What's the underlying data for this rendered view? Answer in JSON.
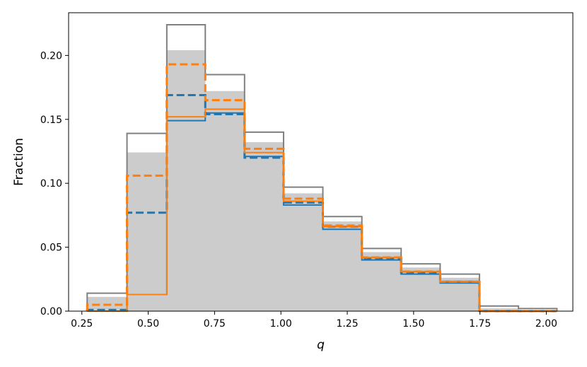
{
  "chart_data": {
    "type": "histogram",
    "title": "",
    "xlabel": "q",
    "ylabel": "Fraction",
    "xlim": [
      0.2,
      2.1
    ],
    "ylim": [
      0,
      0.2334
    ],
    "xticks": [
      0.25,
      0.5,
      0.75,
      1.0,
      1.25,
      1.5,
      1.75,
      2.0
    ],
    "xtick_labels": [
      "0.25",
      "0.50",
      "0.75",
      "1.00",
      "1.25",
      "1.50",
      "1.75",
      "2.00"
    ],
    "yticks": [
      0.0,
      0.05,
      0.1,
      0.15,
      0.2
    ],
    "ytick_labels": [
      "0.00",
      "0.05",
      "0.10",
      "0.15",
      "0.20"
    ],
    "grid": false,
    "bin_edges": [
      0.27,
      0.42,
      0.57,
      0.715,
      0.863,
      1.01,
      1.158,
      1.305,
      1.453,
      1.6,
      1.748,
      1.895,
      2.04
    ],
    "series": [
      {
        "style": "filled",
        "color": "#cccccc",
        "values": [
          0.011,
          0.124,
          0.204,
          0.172,
          0.132,
          0.092,
          0.07,
          0.046,
          0.034,
          0.026,
          0.002,
          0.0
        ]
      },
      {
        "style": "step",
        "color": "#808080",
        "dashed": false,
        "values": [
          0.014,
          0.139,
          0.224,
          0.185,
          0.14,
          0.097,
          0.074,
          0.049,
          0.037,
          0.029,
          0.004,
          0.002
        ]
      },
      {
        "style": "step",
        "color": "#1f77b4",
        "dashed": false,
        "values": [
          0.0,
          0.013,
          0.149,
          0.155,
          0.121,
          0.083,
          0.064,
          0.04,
          0.029,
          0.022,
          0.0,
          0.0
        ]
      },
      {
        "style": "step",
        "color": "#1f77b4",
        "dashed": true,
        "values": [
          0.001,
          0.077,
          0.169,
          0.154,
          0.12,
          0.085,
          0.066,
          0.041,
          0.03,
          0.023,
          0.0,
          0.0
        ]
      },
      {
        "style": "step",
        "color": "#ff7f0e",
        "dashed": false,
        "values": [
          0.0,
          0.013,
          0.152,
          0.158,
          0.124,
          0.086,
          0.066,
          0.042,
          0.031,
          0.023,
          0.0,
          0.0
        ]
      },
      {
        "style": "step",
        "color": "#ff7f0e",
        "dashed": true,
        "values": [
          0.005,
          0.106,
          0.193,
          0.165,
          0.127,
          0.088,
          0.067,
          0.042,
          0.031,
          0.023,
          0.0,
          0.0
        ]
      }
    ]
  }
}
